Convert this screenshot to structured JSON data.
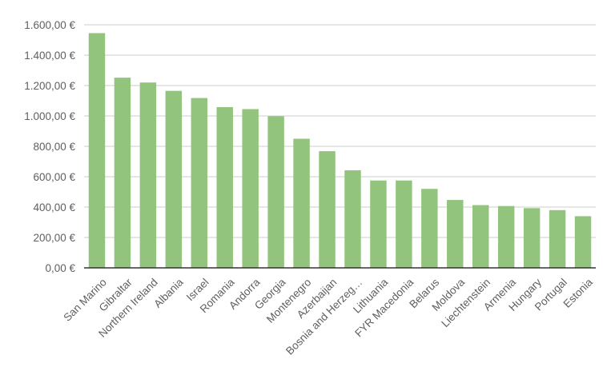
{
  "chart_data": {
    "type": "bar",
    "title": "",
    "xlabel": "",
    "ylabel": "",
    "ylim": [
      0,
      1600
    ],
    "y_ticks": [
      0,
      200,
      400,
      600,
      800,
      1000,
      1200,
      1400,
      1600
    ],
    "y_tick_labels": [
      "0,00 €",
      "200,00 €",
      "400,00 €",
      "600,00 €",
      "800,00 €",
      "1.000,00 €",
      "1.200,00 €",
      "1.400,00 €",
      "1.600,00 €"
    ],
    "grid": true,
    "legend": "none",
    "bar_color": "#93c47d",
    "categories": [
      "San Marino",
      "Gibraltar",
      "Northern Ireland",
      "Albania",
      "Israel",
      "Romania",
      "Andorra",
      "Georgia",
      "Montenegro",
      "Azerbaijan",
      "Bosnia and Herzeg…",
      "Lithuania",
      "FYR Macedonia",
      "Belarus",
      "Moldova",
      "Liechtenstein",
      "Armenia",
      "Hungary",
      "Portugal",
      "Estonia"
    ],
    "values": [
      1545,
      1252,
      1220,
      1165,
      1118,
      1058,
      1045,
      998,
      850,
      768,
      642,
      575,
      575,
      520,
      447,
      413,
      407,
      393,
      380,
      340
    ]
  }
}
